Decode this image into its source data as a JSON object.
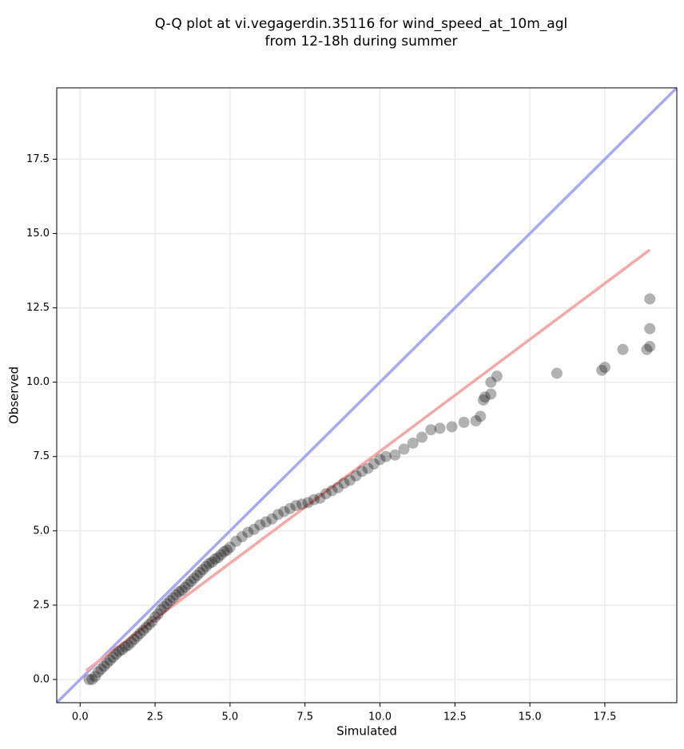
{
  "chart_data": {
    "type": "scatter",
    "title_lines": [
      "Q-Q plot at vi.vegagerdin.35116 for wind_speed_at_10m_agl",
      "from 12-18h during summer"
    ],
    "x_label": "Simulated",
    "y_label": "Observed",
    "xlim": [
      -0.78,
      19.9
    ],
    "ylim": [
      -0.78,
      19.9
    ],
    "xticks": [
      {
        "value": 0,
        "label": "0.0"
      },
      2.5,
      {
        "value": 5,
        "label": "5.0"
      },
      7.5,
      {
        "value": 10,
        "label": "10.0"
      },
      12.5,
      {
        "value": 15,
        "label": "15.0"
      },
      17.5
    ],
    "yticks": [
      {
        "value": 0,
        "label": "0.0"
      },
      2.5,
      {
        "value": 5,
        "label": "5.0"
      },
      7.5,
      {
        "value": 10,
        "label": "10.0"
      },
      12.5,
      {
        "value": 15,
        "label": "15.0"
      },
      17.5
    ],
    "grid": true,
    "x": [
      0.3,
      0.4,
      0.5,
      0.6,
      0.7,
      0.8,
      0.9,
      1.0,
      1.1,
      1.2,
      1.3,
      1.4,
      1.5,
      1.6,
      1.7,
      1.8,
      1.9,
      2.0,
      2.1,
      2.2,
      2.3,
      2.4,
      2.5,
      2.6,
      2.7,
      2.8,
      2.9,
      3.0,
      3.1,
      3.2,
      3.3,
      3.4,
      3.5,
      3.6,
      3.7,
      3.8,
      3.9,
      4.0,
      4.1,
      4.2,
      4.3,
      4.4,
      4.5,
      4.6,
      4.7,
      4.8,
      4.9,
      5.0,
      5.2,
      5.4,
      5.6,
      5.8,
      6.0,
      6.2,
      6.4,
      6.6,
      6.8,
      7.0,
      7.2,
      7.4,
      7.6,
      7.8,
      8.0,
      8.2,
      8.4,
      8.6,
      8.8,
      9.0,
      9.2,
      9.4,
      9.6,
      9.8,
      10.0,
      10.2,
      10.5,
      10.8,
      11.1,
      11.4,
      11.7,
      12.0,
      12.4,
      12.8,
      13.2,
      13.35,
      13.45,
      13.5,
      13.7,
      13.7,
      13.9,
      15.9,
      17.4,
      17.5,
      18.1,
      18.9,
      19.0,
      19.0,
      19.0
    ],
    "series": [
      {
        "color": "#000000",
        "opacity": 0.3,
        "values": [
          0.0,
          0.0,
          0.1,
          0.25,
          0.35,
          0.45,
          0.55,
          0.65,
          0.75,
          0.85,
          0.95,
          1.0,
          1.1,
          1.15,
          1.25,
          1.35,
          1.45,
          1.55,
          1.65,
          1.75,
          1.85,
          1.95,
          2.1,
          2.2,
          2.35,
          2.45,
          2.55,
          2.65,
          2.75,
          2.85,
          2.95,
          3.0,
          3.1,
          3.2,
          3.3,
          3.4,
          3.5,
          3.6,
          3.7,
          3.8,
          3.9,
          3.95,
          4.05,
          4.1,
          4.2,
          4.3,
          4.35,
          4.45,
          4.65,
          4.8,
          4.95,
          5.05,
          5.2,
          5.3,
          5.4,
          5.55,
          5.65,
          5.75,
          5.85,
          5.9,
          5.95,
          6.05,
          6.1,
          6.25,
          6.35,
          6.45,
          6.6,
          6.7,
          6.85,
          7.0,
          7.1,
          7.25,
          7.4,
          7.5,
          7.55,
          7.75,
          7.95,
          8.15,
          8.4,
          8.45,
          8.5,
          8.65,
          8.7,
          8.85,
          9.4,
          9.5,
          9.6,
          10.0,
          10.2,
          10.3,
          10.4,
          10.5,
          11.1,
          11.1,
          11.2,
          11.8,
          12.8
        ]
      }
    ],
    "reference_lines": [
      {
        "color": "#a8a8f4",
        "x": [
          -0.78,
          19.9
        ],
        "y": [
          -0.78,
          19.9
        ]
      },
      {
        "color": "#f6a8a8",
        "x": [
          0.2,
          19.0
        ],
        "y": [
          0.3,
          14.45
        ]
      }
    ]
  }
}
